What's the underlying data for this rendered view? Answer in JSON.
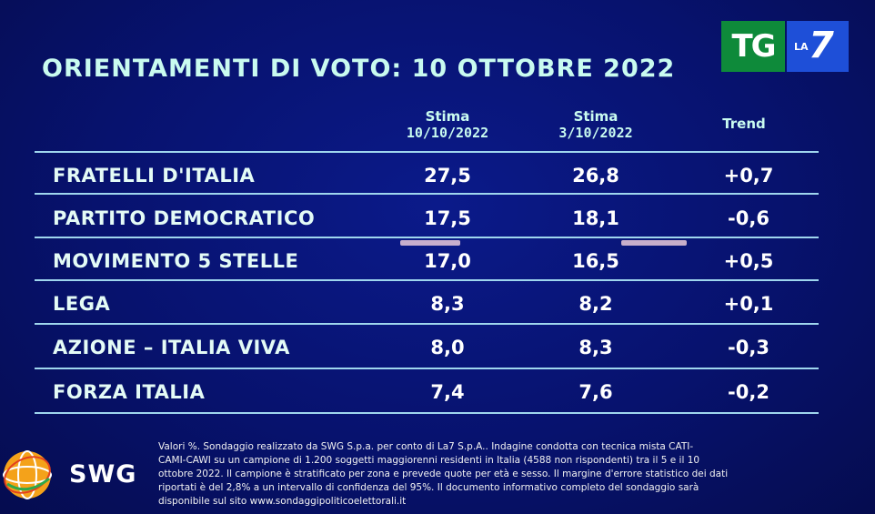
{
  "title": "ORIENTAMENTI DI VOTO: 10 OTTOBRE 2022",
  "logo": {
    "tg": "TG",
    "la": "LA",
    "seven": "7"
  },
  "columns": {
    "col1": {
      "line1": "Stima",
      "line2": "10/10/2022"
    },
    "col2": {
      "line1": "Stima",
      "line2": "3/10/2022"
    },
    "col3": {
      "line1": "Trend"
    }
  },
  "rows": [
    {
      "party": "FRATELLI D'ITALIA",
      "stima_10_10": "27,5",
      "stima_3_10": "26,8",
      "trend": "+0,7"
    },
    {
      "party": "PARTITO DEMOCRATICO",
      "stima_10_10": "17,5",
      "stima_3_10": "18,1",
      "trend": "-0,6"
    },
    {
      "party": "MOVIMENTO 5 STELLE",
      "stima_10_10": "17,0",
      "stima_3_10": "16,5",
      "trend": "+0,5"
    },
    {
      "party": "LEGA",
      "stima_10_10": "8,3",
      "stima_3_10": "8,2",
      "trend": "+0,1"
    },
    {
      "party": "AZIONE – ITALIA VIVA",
      "stima_10_10": "8,0",
      "stima_3_10": "8,3",
      "trend": "-0,3"
    },
    {
      "party": "FORZA ITALIA",
      "stima_10_10": "7,4",
      "stima_3_10": "7,6",
      "trend": "-0,2"
    }
  ],
  "swg": {
    "name": "SWG"
  },
  "footnote": {
    "line1": "Valori %. Sondaggio realizzato da SWG S.p.a. per conto di La7 S.p.A.. Indagine condotta con tecnica mista CATI-",
    "line2": "CAMI-CAWI su un campione di 1.200 soggetti maggiorenni residenti in Italia (4588 non rispondenti) tra il 5 e il 10",
    "line3": "ottobre 2022. Il campione è stratificato per zona e prevede quote per età e sesso. Il margine d'errore statistico dei dati",
    "line4": "riportati è del 2,8% a un intervallo di confidenza del 95%. Il documento informativo completo del sondaggio sarà",
    "line5": "disponibile sul sito www.sondaggipoliticoelettorali.it"
  },
  "colors": {
    "background": "#07126e",
    "title": "#c9fbf0",
    "rule": "#9fd6ee",
    "tg_green": "#0e8a3a",
    "la7_blue": "#1e4fd8"
  }
}
